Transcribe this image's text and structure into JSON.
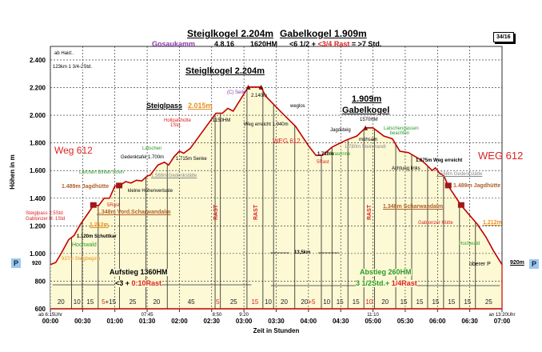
{
  "header": {
    "title_a": "Steiglkogel 2.204m",
    "title_b": "Gabelkogel 1.909m",
    "region": "Gosaukamm",
    "date": "4.8.16",
    "hm": "1620HM",
    "dur_a": "<6 1/2 +",
    "dur_rast": "<3/4 Rast",
    "dur_b": "= >7  Std.",
    "badge": "34/16"
  },
  "notes": {
    "start": "ab Haid:.",
    "km": "123km 1 3/4-2Std."
  },
  "annotations": {
    "peak1": "Steiglkogel 2.204m",
    "seile": "(C) Seile",
    "m2140": "2.140m",
    "steiglpass": "Steiglpass",
    "m2015": "2.015m",
    "hollpass": "Hollpaßhütte 1Std.",
    "hm1150": "1150HM",
    "wegerreicht": "Weg erreicht 1.940m",
    "weglos": "weglos",
    "peak2a": "1.909m",
    "peak2b": "Gabelkogel",
    "hm1570": "1570HM",
    "jagdsteig": "Jagdsteig",
    "muehsam": "mühsam",
    "latschengassen": "Latschengassen beachten",
    "steinmandl": "1.780m Steinmandl",
    "weg612a": "WEG 612",
    "m1710": "1.710m",
    "rast5b": "5Rast",
    "grasrinne": "Grasrinne",
    "m1675": "1.675m Weg erreicht",
    "achtung": "Achtung links",
    "weg612b": "WEG  612",
    "ged_r": "1.568m Gedenkstätte",
    "jagd_r": "1.489m Jagdhütte",
    "scharw_r": "1.348m  Scharwandalm",
    "gablonzer": "Gablonzer Hütte",
    "m1212_r": "1.212m",
    "hochwald_r": "Hochwald",
    "obererP": "oberer P",
    "m920": "920m",
    "km": "13,5km",
    "weg612l": "Weg 612",
    "laerchen": "Lärchen Birken Erlen",
    "ged_l": "1.568m Gedenkstätte",
    "gedenktafel": "Gedenktafel 1.700m",
    "latschen": "Latschen",
    "senke": "1.715m Senke",
    "jagd_l": "1.489m Jagdhütte",
    "verluste": "kleine Höhenverluste",
    "rast5a": "5Rast",
    "scharw_l": "1.348m Vord.Scharwandalm",
    "steigpass_note1": "Steiglpass 2.5Std",
    "steigpass_note2": "Gablonzer H. 1Std",
    "m1212_l": "1.212m",
    "schuttkar": "1.120m Schuttkar",
    "hochwald_l": "Hochwald",
    "steigbeginn": "937m Steigbeginn",
    "aufstieg": "Aufstieg 1360HM",
    "auf_time": "<3 + ",
    "auf_rast": "0:10Rast",
    "abstieg": "Abstieg  260HM",
    "ab_time": "3 1/2Std.+ ",
    "ab_rast": "1/4Rast",
    "rast": "RAST",
    "parking": "P",
    "m920l": "920"
  },
  "chart_data": {
    "type": "area",
    "title": "Steiglkogel 2.204m Gabelkogel 1.909m",
    "xlabel": "Zeit in Stunden",
    "ylabel": "Höhen in m",
    "xlim_minutes": [
      0,
      420
    ],
    "ylim": [
      600,
      2500
    ],
    "x_ticks": [
      "00:00",
      "00:30",
      "01:00",
      "01:30",
      "02:00",
      "02:30",
      "03:00",
      "03:30",
      "04:00",
      "04:30",
      "05:00",
      "05:30",
      "06:00",
      "06:30",
      "07:00"
    ],
    "y_ticks": [
      600,
      800,
      1000,
      1200,
      1400,
      1600,
      1800,
      2000,
      2200,
      2400
    ],
    "y_tick_labels": [
      "600",
      "800",
      "1.000",
      "1.200",
      "1.400",
      "1.600",
      "1.800",
      "2.000",
      "2.200",
      "2.400"
    ],
    "clock_times": [
      {
        "at": "00:00",
        "label": "ab 6:15Uhr"
      },
      {
        "at": "01:30",
        "label": "07:45"
      },
      {
        "at": "02:35",
        "label": "8:50"
      },
      {
        "at": "03:00",
        "label": "9:20"
      },
      {
        "at": "05:00",
        "label": "11:10"
      },
      {
        "at": "07:00",
        "label": "an 13:20Uhr"
      }
    ],
    "segments": [
      {
        "label": "20"
      },
      {
        "label": "10"
      },
      {
        "label": "15"
      },
      {
        "label": "5",
        "rest": true,
        "extra": "+15"
      },
      {
        "label": "25"
      },
      {
        "label": "20"
      },
      {
        "label": "45"
      },
      {
        "label": "5",
        "rest": true
      },
      {
        "label": "25"
      },
      {
        "label": "15",
        "rest": true
      },
      {
        "label": "10"
      },
      {
        "label": "20"
      },
      {
        "label": "20",
        "extra_rest": "+5"
      },
      {
        "label": "10"
      },
      {
        "label": "15"
      },
      {
        "label": "15"
      },
      {
        "label": "10",
        "rest": true
      },
      {
        "label": "20"
      },
      {
        "label": "15"
      },
      {
        "label": "15"
      },
      {
        "label": "15"
      },
      {
        "label": "15"
      },
      {
        "label": "15"
      },
      {
        "label": "25"
      }
    ],
    "grid": true,
    "colors": {
      "line": "#c00000",
      "fill": "#fcf9d4",
      "grid": "#222"
    },
    "profile_minutes": [
      0,
      5,
      10,
      17,
      22,
      28,
      35,
      40,
      45,
      50,
      55,
      60,
      64,
      70,
      75,
      80,
      85,
      90,
      93,
      100,
      106,
      110,
      115,
      120,
      124,
      130,
      154,
      160,
      165,
      170,
      184,
      196,
      200,
      215,
      228,
      240,
      247,
      253,
      262,
      275,
      285,
      293,
      300,
      305,
      310,
      318,
      325,
      333,
      345,
      350,
      355,
      358,
      362,
      366,
      370,
      382,
      397,
      405,
      412,
      420
    ],
    "profile_elevation": [
      920,
      935,
      1000,
      1100,
      1130,
      1212,
      1290,
      1348,
      1348,
      1400,
      1400,
      1489,
      1489,
      1520,
      1510,
      1530,
      1525,
      1560,
      1568,
      1640,
      1660,
      1640,
      1700,
      1740,
      1725,
      1760,
      2015,
      2015,
      2050,
      2030,
      2204,
      2204,
      2140,
      2020,
      1920,
      1780,
      1710,
      1710,
      1770,
      1820,
      1850,
      1909,
      1909,
      1880,
      1850,
      1830,
      1740,
      1730,
      1675,
      1640,
      1600,
      1620,
      1580,
      1560,
      1489,
      1348,
      1212,
      1120,
      1020,
      920
    ]
  }
}
